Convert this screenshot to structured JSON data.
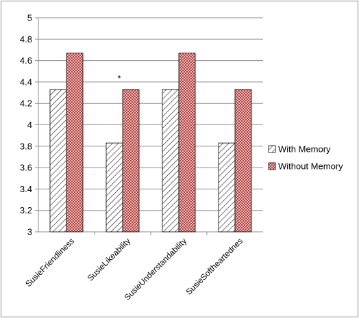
{
  "chart_data": {
    "type": "bar",
    "categories": [
      "SusieFriendliness",
      "SusieLikeability",
      "SusieUnderstandability",
      "SusieSoftheartednes"
    ],
    "series": [
      {
        "name": "With Memory",
        "values": [
          4.33,
          3.83,
          4.33,
          3.83
        ],
        "color": "#ffffff",
        "pattern": "diagonal-hatch"
      },
      {
        "name": "Without Memory",
        "values": [
          4.67,
          4.33,
          4.67,
          4.33
        ],
        "color": "#c0504d",
        "pattern": "dotted"
      }
    ],
    "y_ticks": [
      "3",
      "3.2",
      "3.4",
      "3.6",
      "3.8",
      "4",
      "4.2",
      "4.4",
      "4.6",
      "4.8",
      "5"
    ],
    "ylim": [
      3,
      5
    ],
    "grid": true,
    "legend_position": "right",
    "annotations": [
      {
        "text": "*",
        "category": "SusieLikeability",
        "series": "Without Memory"
      }
    ],
    "title": "",
    "xlabel": "",
    "ylabel": ""
  }
}
